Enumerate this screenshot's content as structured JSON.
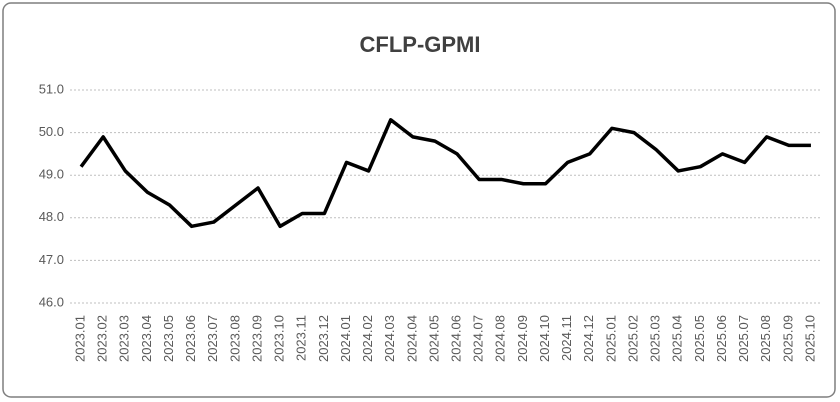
{
  "chart_data": {
    "type": "line",
    "title": "CFLP-GPMI",
    "categories": [
      "2023.01",
      "2023.02",
      "2023.03",
      "2023.04",
      "2023.05",
      "2023.06",
      "2023.07",
      "2023.08",
      "2023.09",
      "2023.10",
      "2023.11",
      "2023.12",
      "2024.01",
      "2024.02",
      "2024.03",
      "2024.04",
      "2024.05",
      "2024.06",
      "2024.07",
      "2024.08",
      "2024.09",
      "2024.10",
      "2024.11",
      "2024.12",
      "2025.01",
      "2025.02",
      "2025.03",
      "2025.04",
      "2025.05",
      "2025.06",
      "2025.07",
      "2025.08",
      "2025.09",
      "2025.10"
    ],
    "values": [
      49.2,
      49.9,
      49.1,
      48.6,
      48.3,
      47.8,
      47.9,
      48.3,
      48.7,
      47.8,
      48.1,
      48.1,
      49.3,
      49.1,
      50.3,
      49.9,
      49.8,
      49.5,
      48.9,
      48.9,
      48.8,
      48.8,
      49.3,
      49.5,
      50.1,
      50.0,
      49.6,
      49.1,
      49.2,
      49.5,
      49.3,
      49.9,
      49.7,
      49.7
    ],
    "color": "#000000",
    "ylim": [
      46,
      51
    ],
    "yticks": [
      {
        "value": 46,
        "label": "46.0"
      },
      {
        "value": 47,
        "label": "47.0"
      },
      {
        "value": 48,
        "label": "48.0"
      },
      {
        "value": 49,
        "label": "49.0"
      },
      {
        "value": 50,
        "label": "50.0"
      },
      {
        "value": 51,
        "label": "51.0"
      }
    ],
    "grid": true
  }
}
